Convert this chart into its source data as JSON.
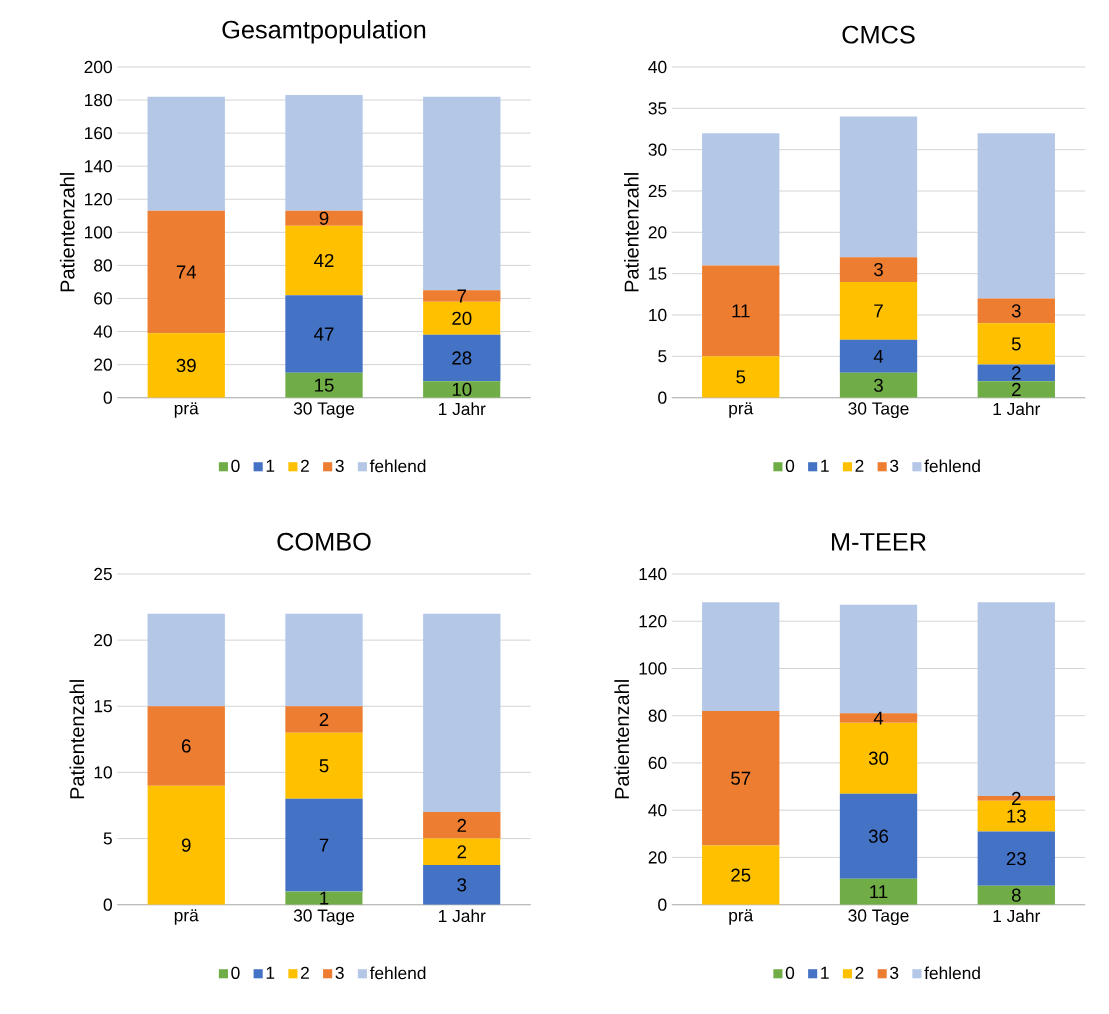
{
  "chart_data": [
    {
      "type": "bar",
      "title": "Gesamtpopulation",
      "ylabel": "Patientenzahl",
      "categories": [
        "prä",
        "30 Tage",
        "1 Jahr"
      ],
      "stacked": true,
      "ylim": [
        0,
        200
      ],
      "yticks": [
        0,
        20,
        40,
        60,
        80,
        100,
        120,
        140,
        160,
        180,
        200
      ],
      "grid": "y",
      "legend": "bottom",
      "series": [
        {
          "name": "0",
          "color": "#70ad47",
          "values": [
            0,
            15,
            10
          ],
          "value_labels": [
            null,
            "15",
            "10"
          ]
        },
        {
          "name": "1",
          "color": "#4472c4",
          "values": [
            0,
            47,
            28
          ],
          "value_labels": [
            null,
            "47",
            "28"
          ]
        },
        {
          "name": "2",
          "color": "#ffc000",
          "values": [
            39,
            42,
            20
          ],
          "value_labels": [
            "39",
            "42",
            "20"
          ]
        },
        {
          "name": "3",
          "color": "#ed7d31",
          "values": [
            74,
            9,
            7
          ],
          "value_labels": [
            "74",
            "9",
            "7"
          ]
        },
        {
          "name": "fehlend",
          "color": "#b4c7e7",
          "values": [
            69,
            70,
            117
          ],
          "value_labels": [
            null,
            null,
            null
          ]
        }
      ]
    },
    {
      "type": "bar",
      "title": "CMCS",
      "ylabel": "Patientenzahl",
      "categories": [
        "prä",
        "30 Tage",
        "1 Jahr"
      ],
      "stacked": true,
      "ylim": [
        0,
        40
      ],
      "yticks": [
        0,
        5,
        10,
        15,
        20,
        25,
        30,
        35,
        40
      ],
      "grid": "y",
      "legend": "bottom",
      "series": [
        {
          "name": "0",
          "color": "#70ad47",
          "values": [
            0,
            3,
            2
          ],
          "value_labels": [
            null,
            "3",
            "2"
          ]
        },
        {
          "name": "1",
          "color": "#4472c4",
          "values": [
            0,
            4,
            2
          ],
          "value_labels": [
            null,
            "4",
            "2"
          ]
        },
        {
          "name": "2",
          "color": "#ffc000",
          "values": [
            5,
            7,
            5
          ],
          "value_labels": [
            "5",
            "7",
            "5"
          ]
        },
        {
          "name": "3",
          "color": "#ed7d31",
          "values": [
            11,
            3,
            3
          ],
          "value_labels": [
            "11",
            "3",
            "3"
          ]
        },
        {
          "name": "fehlend",
          "color": "#b4c7e7",
          "values": [
            16,
            17,
            20
          ],
          "value_labels": [
            null,
            null,
            null
          ]
        }
      ]
    },
    {
      "type": "bar",
      "title": "COMBO",
      "ylabel": "Patientenzahl",
      "categories": [
        "prä",
        "30 Tage",
        "1 Jahr"
      ],
      "stacked": true,
      "ylim": [
        0,
        25
      ],
      "yticks": [
        0,
        5,
        10,
        15,
        20,
        25
      ],
      "grid": "y",
      "legend": "bottom",
      "series": [
        {
          "name": "0",
          "color": "#70ad47",
          "values": [
            0,
            1,
            0
          ],
          "value_labels": [
            null,
            "1",
            null
          ]
        },
        {
          "name": "1",
          "color": "#4472c4",
          "values": [
            0,
            7,
            3
          ],
          "value_labels": [
            null,
            "7",
            "3"
          ]
        },
        {
          "name": "2",
          "color": "#ffc000",
          "values": [
            9,
            5,
            2
          ],
          "value_labels": [
            "9",
            "5",
            "2"
          ]
        },
        {
          "name": "3",
          "color": "#ed7d31",
          "values": [
            6,
            2,
            2
          ],
          "value_labels": [
            "6",
            "2",
            "2"
          ]
        },
        {
          "name": "fehlend",
          "color": "#b4c7e7",
          "values": [
            7,
            7,
            15
          ],
          "value_labels": [
            null,
            null,
            null
          ]
        }
      ]
    },
    {
      "type": "bar",
      "title": "M-TEER",
      "ylabel": "Patientenzahl",
      "categories": [
        "prä",
        "30 Tage",
        "1 Jahr"
      ],
      "stacked": true,
      "ylim": [
        0,
        140
      ],
      "yticks": [
        0,
        20,
        40,
        60,
        80,
        100,
        120,
        140
      ],
      "grid": "y",
      "legend": "bottom",
      "series": [
        {
          "name": "0",
          "color": "#70ad47",
          "values": [
            0,
            11,
            8
          ],
          "value_labels": [
            null,
            "11",
            "8"
          ]
        },
        {
          "name": "1",
          "color": "#4472c4",
          "values": [
            0,
            36,
            23
          ],
          "value_labels": [
            null,
            "36",
            "23"
          ]
        },
        {
          "name": "2",
          "color": "#ffc000",
          "values": [
            25,
            30,
            13
          ],
          "value_labels": [
            "25",
            "30",
            "13"
          ]
        },
        {
          "name": "3",
          "color": "#ed7d31",
          "values": [
            57,
            4,
            2
          ],
          "value_labels": [
            "57",
            "4",
            "2"
          ]
        },
        {
          "name": "fehlend",
          "color": "#b4c7e7",
          "values": [
            46,
            46,
            82
          ],
          "value_labels": [
            null,
            null,
            null
          ]
        }
      ]
    }
  ]
}
